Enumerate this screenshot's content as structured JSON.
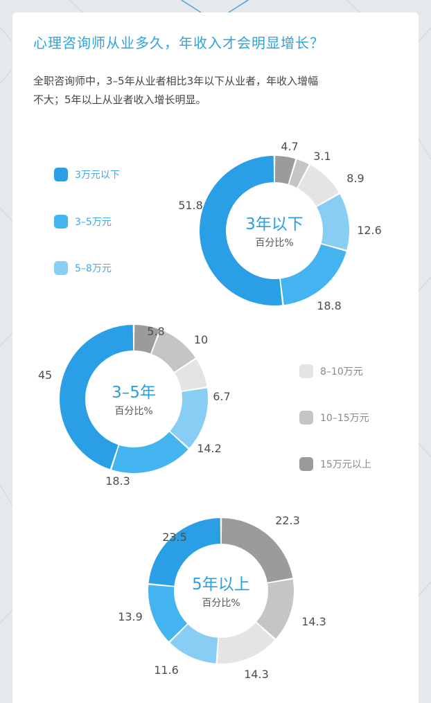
{
  "title": "心理咨询师从业多久，年收入才会明显增长？",
  "subtitle_lines": [
    "全职咨询师中，3–5年从业者相比3年以下从业者，年收入增幅",
    "不大；5年以上从业者收入增长明显。"
  ],
  "colors": {
    "accent": "#2ea3de",
    "segments": [
      "#2b9fe6",
      "#44b4f0",
      "#88cdf3",
      "#e4e4e4",
      "#c5c5c5",
      "#9b9b9b"
    ]
  },
  "chart_data": {
    "type": "donut",
    "unit_label": "百分比%",
    "legend": [
      "3万元以下",
      "3–5万元",
      "5–8万元",
      "8–10万元",
      "10–15万元",
      "15万元以上"
    ],
    "charts": [
      {
        "center_title": "3年以下",
        "values": [
          51.8,
          18.8,
          12.6,
          8.9,
          3.1,
          4.7
        ]
      },
      {
        "center_title": "3–5年",
        "values": [
          45,
          18.3,
          14.2,
          6.7,
          10,
          5.8
        ]
      },
      {
        "center_title": "5年以上",
        "values": [
          23.5,
          13.9,
          11.6,
          14.3,
          14.3,
          22.3
        ]
      }
    ]
  }
}
